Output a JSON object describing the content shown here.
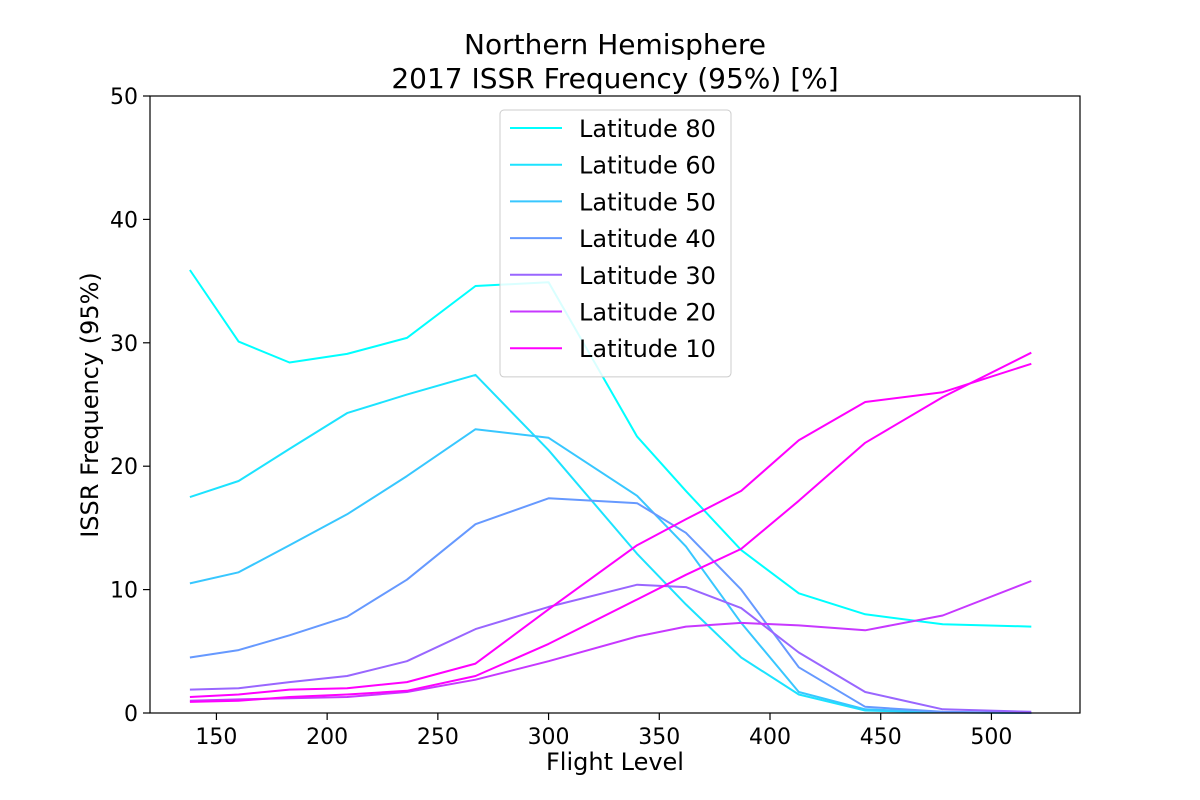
{
  "chart_data": {
    "type": "line",
    "title_line1": "Northern Hemisphere",
    "title_line2": "2017 ISSR Frequency (95%) [%]",
    "xlabel": "Flight Level",
    "ylabel": "ISSR Frequency (95%)",
    "xlim": [
      120,
      540
    ],
    "ylim": [
      0,
      50
    ],
    "xticks": [
      150,
      200,
      250,
      300,
      350,
      400,
      450,
      500
    ],
    "yticks": [
      0,
      10,
      20,
      30,
      40,
      50
    ],
    "grid": false,
    "legend_position": "top-center",
    "x": [
      138,
      160,
      183,
      209,
      236,
      267,
      300,
      340,
      362,
      387,
      413,
      443,
      478,
      518
    ],
    "series": [
      {
        "name": "Latitude 80",
        "color": "#00ffff",
        "values": [
          35.9,
          30.1,
          28.4,
          29.1,
          30.4,
          34.6,
          34.9,
          22.4,
          18.0,
          13.2,
          9.7,
          8.0,
          7.2,
          7.0
        ]
      },
      {
        "name": "Latitude 60",
        "color": "#1ce3ff",
        "values": [
          17.5,
          18.8,
          21.4,
          24.3,
          25.8,
          27.4,
          21.3,
          12.9,
          8.8,
          4.5,
          1.5,
          0.2,
          0.05,
          0.0
        ]
      },
      {
        "name": "Latitude 50",
        "color": "#38c7ff",
        "values": [
          10.5,
          11.4,
          13.6,
          16.1,
          19.2,
          23.0,
          22.3,
          17.6,
          13.5,
          7.3,
          1.7,
          0.3,
          0.05,
          0.0
        ]
      },
      {
        "name": "Latitude 40",
        "color": "#6699ff",
        "values": [
          4.5,
          5.1,
          6.3,
          7.8,
          10.8,
          15.3,
          17.4,
          17.0,
          14.6,
          10.0,
          3.7,
          0.5,
          0.1,
          0.0
        ]
      },
      {
        "name": "Latitude 30",
        "color": "#9966ff",
        "values": [
          1.9,
          2.0,
          2.5,
          3.0,
          4.2,
          6.8,
          8.6,
          10.4,
          10.2,
          8.5,
          4.9,
          1.7,
          0.3,
          0.1
        ]
      },
      {
        "name": "Latitude 20",
        "color": "#c738ff",
        "values": [
          1.0,
          1.1,
          1.2,
          1.3,
          1.7,
          2.7,
          4.2,
          6.2,
          7.0,
          7.3,
          7.1,
          6.7,
          7.9,
          10.7
        ]
      },
      {
        "name": "Latitude 10",
        "color": "#ff00ff",
        "values": [
          1.3,
          1.5,
          1.9,
          2.0,
          2.5,
          4.0,
          8.4,
          13.6,
          15.7,
          18.0,
          22.1,
          25.2,
          26.0,
          28.3
        ]
      },
      {
        "name": "",
        "color": "#ff00ff",
        "values": [
          0.9,
          1.0,
          1.3,
          1.5,
          1.8,
          3.0,
          5.6,
          9.2,
          11.2,
          13.3,
          17.2,
          21.9,
          25.6,
          29.2
        ]
      }
    ]
  }
}
